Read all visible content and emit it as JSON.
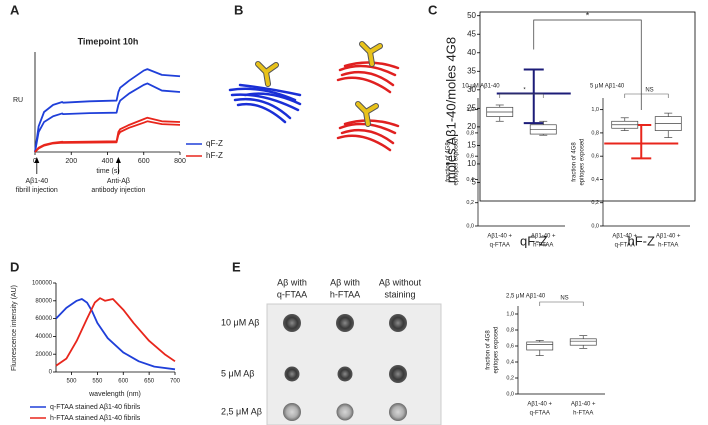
{
  "panel_labels": [
    "A",
    "B",
    "C",
    "D",
    "E"
  ],
  "blot": {
    "columns": [
      [
        "Aβ with",
        "q-FTAA"
      ],
      [
        "Aβ with",
        "h-FTAA"
      ],
      [
        "Aβ without",
        "staining"
      ]
    ],
    "rows": [
      "10 μM Aβ",
      "5 μM Aβ",
      "2,5 μM Aβ"
    ]
  },
  "chart_data": [
    {
      "type": "line",
      "title": "Timepoint 10h",
      "xlabel": "time (s)",
      "ylabel": "RU",
      "x": [
        0,
        20,
        50,
        100,
        150,
        155,
        300,
        450,
        460,
        470,
        520,
        600,
        620,
        700,
        800
      ],
      "xlim": [
        0,
        800
      ],
      "xticks": [
        0,
        200,
        400,
        600,
        800
      ],
      "ylim": [
        0,
        700
      ],
      "series": [
        {
          "name": "qF-Z",
          "color": "#1f3fd9",
          "replicates": [
            [
              0,
              180,
              280,
              330,
              350,
              345,
              355,
              360,
              420,
              450,
              500,
              570,
              580,
              540,
              530
            ],
            [
              0,
              140,
              210,
              250,
              270,
              265,
              272,
              275,
              330,
              360,
              410,
              470,
              480,
              430,
              420
            ]
          ]
        },
        {
          "name": "hF-Z",
          "color": "#e8261c",
          "replicates": [
            [
              0,
              30,
              50,
              65,
              72,
              70,
              72,
              75,
              140,
              160,
              190,
              230,
              240,
              215,
              210
            ],
            [
              0,
              25,
              45,
              60,
              65,
              64,
              66,
              68,
              120,
              140,
              170,
              205,
              215,
              195,
              190
            ]
          ]
        }
      ],
      "annotations": [
        {
          "x": 10,
          "lines": [
            "Aβ1-40",
            "fibrill injection"
          ]
        },
        {
          "x": 460,
          "lines": [
            "Anti-Aβ",
            "antibody injection"
          ]
        }
      ]
    },
    {
      "type": "errorbar",
      "ylabel": "moles Aβ1-40/moles 4G8",
      "categories": [
        "qF-Z",
        "hF-Z"
      ],
      "colors": [
        "#1c1c78",
        "#e8261c"
      ],
      "values": [
        29,
        15.5
      ],
      "lower": [
        21,
        11.5
      ],
      "upper": [
        35.5,
        20.5
      ],
      "ylim": [
        0,
        51
      ],
      "yticks": [
        5,
        10,
        15,
        20,
        25,
        30,
        35,
        40,
        45,
        50
      ],
      "annotation": "*"
    },
    {
      "type": "line",
      "xlabel": "wavelength (nm)",
      "ylabel": "Fluorescence intensity (AU)",
      "xlim": [
        470,
        700
      ],
      "xticks": [
        500,
        550,
        600,
        650,
        700
      ],
      "ylim": [
        0,
        100000
      ],
      "yticks": [
        0,
        20000,
        40000,
        60000,
        80000,
        100000
      ],
      "series": [
        {
          "name": "q-FTAA stained Aβ1-40 fibrils",
          "color": "#1f3fd9",
          "x": [
            470,
            490,
            510,
            520,
            530,
            540,
            550,
            570,
            600,
            630,
            660,
            700
          ],
          "values": [
            60000,
            72000,
            80000,
            82000,
            78000,
            68000,
            55000,
            38000,
            22000,
            12000,
            6000,
            3000
          ]
        },
        {
          "name": "h-FTAA stained Aβ1-40 fibrils",
          "color": "#e8261c",
          "x": [
            470,
            490,
            510,
            530,
            545,
            555,
            565,
            580,
            600,
            620,
            650,
            680,
            700
          ],
          "values": [
            7000,
            15000,
            35000,
            60000,
            78000,
            83000,
            80000,
            82000,
            70000,
            55000,
            35000,
            20000,
            12000
          ]
        }
      ]
    },
    {
      "type": "box",
      "title": "10 μM Aβ1-40",
      "ylabel": [
        "fraction of 4G8",
        "epitopes exposed"
      ],
      "categories": [
        [
          "Aβ1-40 +",
          "q-FTAA"
        ],
        [
          "Aβ1-40 +",
          "h-FTAA"
        ]
      ],
      "ylim": [
        0,
        1.1
      ],
      "yticks": [
        {
          "value": 0,
          "label": "0,0"
        },
        {
          "value": 0.2,
          "label": "0,2"
        },
        {
          "value": 0.4,
          "label": "0,4"
        },
        {
          "value": 0.6,
          "label": "0,6"
        },
        {
          "value": 0.8,
          "label": "0,8"
        },
        {
          "value": 1,
          "label": "1,0"
        }
      ],
      "boxes": [
        {
          "min": 0.9,
          "q1": 0.94,
          "median": 0.98,
          "q3": 1.02,
          "max": 1.04
        },
        {
          "min": 0.78,
          "q1": 0.79,
          "median": 0.83,
          "q3": 0.87,
          "max": 0.9
        }
      ],
      "annotation": "*"
    },
    {
      "type": "box",
      "title": "5 μM Aβ1-40",
      "ylabel": [
        "fraction of 4G8",
        "epitopes exposed"
      ],
      "categories": [
        [
          "Aβ1-40 +",
          "q-FTAA"
        ],
        [
          "Aβ1-40 +",
          "h-FTAA"
        ]
      ],
      "ylim": [
        0,
        1.1
      ],
      "yticks": [
        {
          "value": 0,
          "label": "0,0"
        },
        {
          "value": 0.2,
          "label": "0,2"
        },
        {
          "value": 0.4,
          "label": "0,4"
        },
        {
          "value": 0.6,
          "label": "0,6"
        },
        {
          "value": 0.8,
          "label": "0,8"
        },
        {
          "value": 1,
          "label": "1,0"
        }
      ],
      "boxes": [
        {
          "min": 0.82,
          "q1": 0.84,
          "median": 0.87,
          "q3": 0.9,
          "max": 0.93
        },
        {
          "min": 0.76,
          "q1": 0.82,
          "median": 0.88,
          "q3": 0.94,
          "max": 0.97
        }
      ],
      "annotation": "NS"
    },
    {
      "type": "box",
      "title": "2,5 μM Aβ1-40",
      "ylabel": [
        "fraction of 4G8",
        "epitopes exposed"
      ],
      "categories": [
        [
          "Aβ1-40 +",
          "q-FTAA"
        ],
        [
          "Aβ1-40 +",
          "h-FTAA"
        ]
      ],
      "ylim": [
        0,
        1.1
      ],
      "yticks": [
        {
          "value": 0,
          "label": "0,0"
        },
        {
          "value": 0.2,
          "label": "0,2"
        },
        {
          "value": 0.4,
          "label": "0,4"
        },
        {
          "value": 0.6,
          "label": "0,6"
        },
        {
          "value": 0.8,
          "label": "0,8"
        },
        {
          "value": 1,
          "label": "1,0"
        }
      ],
      "boxes": [
        {
          "min": 0.48,
          "q1": 0.55,
          "median": 0.62,
          "q3": 0.65,
          "max": 0.67
        },
        {
          "min": 0.57,
          "q1": 0.61,
          "median": 0.66,
          "q3": 0.69,
          "max": 0.73
        }
      ],
      "annotation": "NS"
    }
  ]
}
